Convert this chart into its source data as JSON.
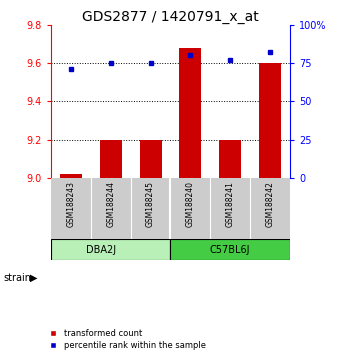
{
  "title": "GDS2877 / 1420791_x_at",
  "samples": [
    "GSM188243",
    "GSM188244",
    "GSM188245",
    "GSM188240",
    "GSM188241",
    "GSM188242"
  ],
  "group_names": [
    "DBA2J",
    "C57BL6J"
  ],
  "group_split": 3,
  "transformed_counts": [
    9.02,
    9.2,
    9.2,
    9.68,
    9.2,
    9.6
  ],
  "percentile_ranks": [
    71,
    75,
    75,
    80,
    77,
    82
  ],
  "bar_color": "#cc0000",
  "dot_color": "#0000cc",
  "ylim_left": [
    9.0,
    9.8
  ],
  "ylim_right": [
    0,
    100
  ],
  "yticks_left": [
    9.0,
    9.2,
    9.4,
    9.6,
    9.8
  ],
  "yticks_right": [
    0,
    25,
    50,
    75,
    100
  ],
  "ytick_labels_right": [
    "0",
    "25",
    "50",
    "75",
    "100%"
  ],
  "grid_lines": [
    9.2,
    9.4,
    9.6
  ],
  "bar_width": 0.55,
  "legend_labels": [
    "transformed count",
    "percentile rank within the sample"
  ],
  "legend_colors": [
    "#cc0000",
    "#0000cc"
  ],
  "background_color": "#ffffff",
  "sample_area_bg": "#cccccc",
  "group_color_1": "#b8f0b8",
  "group_color_2": "#44cc44",
  "strain_label": "strain",
  "title_fontsize": 10,
  "tick_fontsize": 7,
  "sample_fontsize": 5.5,
  "group_fontsize": 7,
  "legend_fontsize": 6
}
